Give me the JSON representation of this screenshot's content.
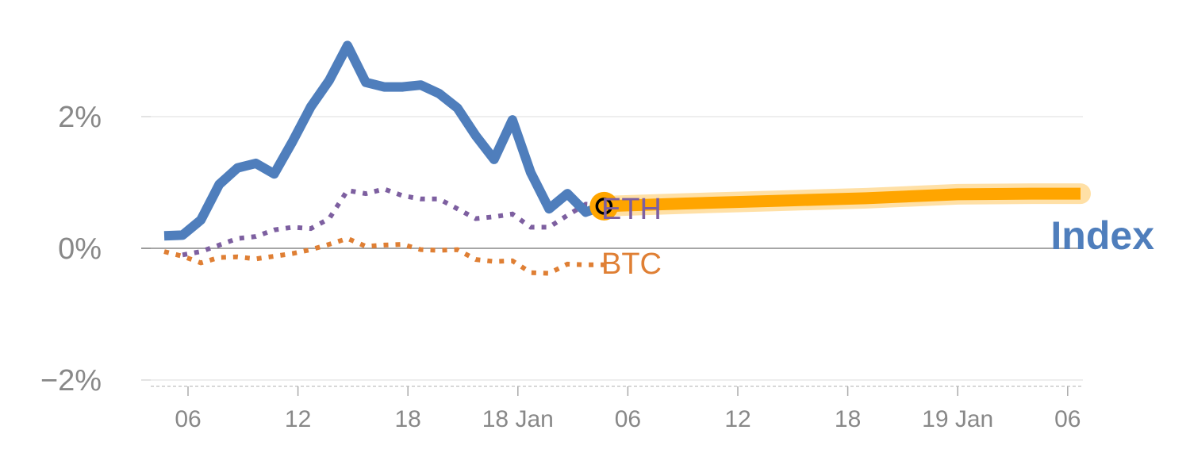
{
  "chart_data": {
    "type": "line",
    "y_ticks": [
      {
        "label": "2%",
        "value": 2
      },
      {
        "label": "0%",
        "value": 0
      },
      {
        "label": "−2%",
        "value": -2
      }
    ],
    "x_ticks": [
      {
        "label": "06",
        "t": 6
      },
      {
        "label": "12",
        "t": 12
      },
      {
        "label": "18",
        "t": 18
      },
      {
        "label": "18 Jan",
        "t": 24
      },
      {
        "label": "06",
        "t": 30
      },
      {
        "label": "12",
        "t": 36
      },
      {
        "label": "18",
        "t": 42
      },
      {
        "label": "19 Jan",
        "t": 48
      },
      {
        "label": "06",
        "t": 54
      }
    ],
    "xlim": [
      4,
      55
    ],
    "ylim": [
      -2.1,
      3.3
    ],
    "colors": {
      "index": "#4f7ebc",
      "eth": "#7d5fa0",
      "btc": "#df7f34",
      "forecast": "#ffa500",
      "tick_text": "#888888",
      "grid": "#e8e8e8",
      "zero_line": "#888888"
    },
    "series": [
      {
        "id": "index",
        "name": "Index",
        "style": "solid",
        "points": [
          [
            4.7,
            0.19
          ],
          [
            5.7,
            0.2
          ],
          [
            6.7,
            0.43
          ],
          [
            7.7,
            0.97
          ],
          [
            8.7,
            1.22
          ],
          [
            9.7,
            1.29
          ],
          [
            10.7,
            1.13
          ],
          [
            11.7,
            1.62
          ],
          [
            12.7,
            2.15
          ],
          [
            13.7,
            2.55
          ],
          [
            14.7,
            3.08
          ],
          [
            15.7,
            2.52
          ],
          [
            16.7,
            2.45
          ],
          [
            17.7,
            2.45
          ],
          [
            18.7,
            2.48
          ],
          [
            19.7,
            2.35
          ],
          [
            20.7,
            2.13
          ],
          [
            21.7,
            1.71
          ],
          [
            22.7,
            1.35
          ],
          [
            23.7,
            1.95
          ],
          [
            24.7,
            1.15
          ],
          [
            25.7,
            0.6
          ],
          [
            26.7,
            0.83
          ],
          [
            27.7,
            0.55
          ],
          [
            28.7,
            0.65
          ]
        ]
      },
      {
        "id": "eth",
        "name": "ETH",
        "style": "dotted",
        "points": [
          [
            5.7,
            -0.1
          ],
          [
            6.7,
            -0.05
          ],
          [
            7.7,
            0.05
          ],
          [
            8.7,
            0.15
          ],
          [
            9.7,
            0.18
          ],
          [
            10.7,
            0.28
          ],
          [
            11.7,
            0.32
          ],
          [
            12.7,
            0.3
          ],
          [
            13.7,
            0.45
          ],
          [
            14.7,
            0.88
          ],
          [
            15.7,
            0.83
          ],
          [
            16.7,
            0.9
          ],
          [
            17.7,
            0.8
          ],
          [
            18.7,
            0.75
          ],
          [
            19.7,
            0.75
          ],
          [
            20.7,
            0.6
          ],
          [
            21.7,
            0.45
          ],
          [
            22.7,
            0.48
          ],
          [
            23.7,
            0.52
          ],
          [
            24.7,
            0.32
          ],
          [
            25.7,
            0.32
          ],
          [
            26.7,
            0.5
          ],
          [
            27.7,
            0.67
          ],
          [
            28.7,
            0.65
          ]
        ]
      },
      {
        "id": "btc",
        "name": "BTC",
        "style": "dotted",
        "points": [
          [
            4.7,
            -0.05
          ],
          [
            5.7,
            -0.12
          ],
          [
            6.7,
            -0.22
          ],
          [
            7.7,
            -0.14
          ],
          [
            8.7,
            -0.13
          ],
          [
            9.7,
            -0.16
          ],
          [
            10.7,
            -0.12
          ],
          [
            11.7,
            -0.08
          ],
          [
            12.7,
            -0.02
          ],
          [
            13.7,
            0.06
          ],
          [
            14.7,
            0.15
          ],
          [
            15.7,
            0.03
          ],
          [
            16.7,
            0.05
          ],
          [
            17.7,
            0.06
          ],
          [
            18.7,
            -0.02
          ],
          [
            19.7,
            -0.03
          ],
          [
            20.7,
            -0.02
          ],
          [
            21.7,
            -0.17
          ],
          [
            22.7,
            -0.2
          ],
          [
            23.7,
            -0.19
          ],
          [
            24.7,
            -0.37
          ],
          [
            25.7,
            -0.38
          ],
          [
            26.7,
            -0.24
          ],
          [
            27.7,
            -0.25
          ],
          [
            28.7,
            -0.25
          ]
        ]
      },
      {
        "id": "forecast",
        "name": "",
        "style": "band",
        "points": [
          [
            28.7,
            0.64
          ],
          [
            33,
            0.68
          ],
          [
            38,
            0.72
          ],
          [
            43,
            0.76
          ],
          [
            48,
            0.82
          ],
          [
            52,
            0.83
          ],
          [
            54.7,
            0.83
          ]
        ]
      }
    ],
    "labels": {
      "eth": "ETH",
      "btc": "BTC",
      "index": "Index"
    },
    "marker": {
      "t": 28.7,
      "value": 0.64
    }
  }
}
